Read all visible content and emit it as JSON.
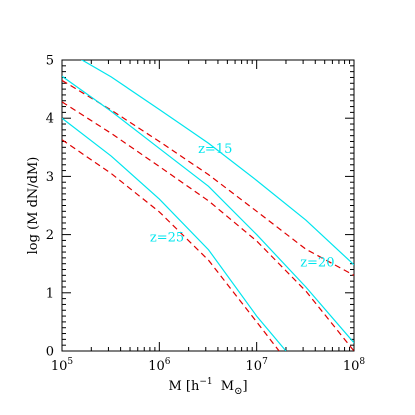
{
  "chart_data": {
    "type": "line",
    "title": "",
    "xlabel": {
      "main": "M",
      "bracket_open": "[",
      "h": "h",
      "h_exp": "−1",
      "msun": "M",
      "msun_sub": "⊙",
      "bracket_close": "]"
    },
    "ylabel": "log (M dN/dM)",
    "x_scale": "log",
    "xlim": [
      100000,
      100000000
    ],
    "ylim": [
      0,
      5
    ],
    "x_ticks": [
      {
        "base": "10",
        "exp": "5",
        "value": 100000
      },
      {
        "base": "10",
        "exp": "6",
        "value": 1000000
      },
      {
        "base": "10",
        "exp": "7",
        "value": 10000000
      },
      {
        "base": "10",
        "exp": "8",
        "value": 100000000
      }
    ],
    "y_ticks": [
      "0",
      "1",
      "2",
      "3",
      "4",
      "5"
    ],
    "grid": false,
    "colors": {
      "solid": "#00e5ee",
      "dashed": "#e00000"
    },
    "series": [
      {
        "style": "solid",
        "label": "",
        "x": [
          100000,
          320000,
          1000000,
          3200000,
          10000000,
          32000000,
          100000000
        ],
        "y": [
          5.2,
          4.71,
          4.15,
          3.57,
          2.93,
          2.25,
          1.48
        ]
      },
      {
        "style": "dashed",
        "label": "",
        "x": [
          100000,
          320000,
          1000000,
          3200000,
          10000000,
          32000000,
          100000000
        ],
        "y": [
          4.65,
          4.14,
          3.6,
          3.03,
          2.4,
          1.75,
          1.3
        ]
      },
      {
        "style": "solid",
        "label": "",
        "x": [
          100000,
          320000,
          1000000,
          3200000,
          10000000,
          32000000,
          100000000
        ],
        "y": [
          4.72,
          4.12,
          3.48,
          2.83,
          2.0,
          1.1,
          0.14
        ]
      },
      {
        "style": "dashed",
        "label": "",
        "x": [
          100000,
          320000,
          1000000,
          3200000,
          10000000,
          32000000,
          100000000
        ],
        "y": [
          4.28,
          3.74,
          3.17,
          2.58,
          1.89,
          1.03,
          0.0
        ]
      },
      {
        "style": "solid",
        "label": "",
        "x": [
          100000,
          320000,
          1000000,
          3200000,
          10000000,
          20000000
        ],
        "y": [
          4.0,
          3.35,
          2.61,
          1.74,
          0.6,
          0.0
        ]
      },
      {
        "style": "dashed",
        "label": "",
        "x": [
          100000,
          320000,
          1000000,
          3200000,
          10000000,
          17000000
        ],
        "y": [
          3.63,
          3.05,
          2.39,
          1.56,
          0.5,
          0.0
        ]
      }
    ],
    "annotations": [
      {
        "text": "z=15",
        "x": 2500000,
        "y": 3.4
      },
      {
        "text": "z=20",
        "x": 28000000,
        "y": 1.45
      },
      {
        "text": "z=25",
        "x": 800000,
        "y": 1.88
      }
    ]
  }
}
